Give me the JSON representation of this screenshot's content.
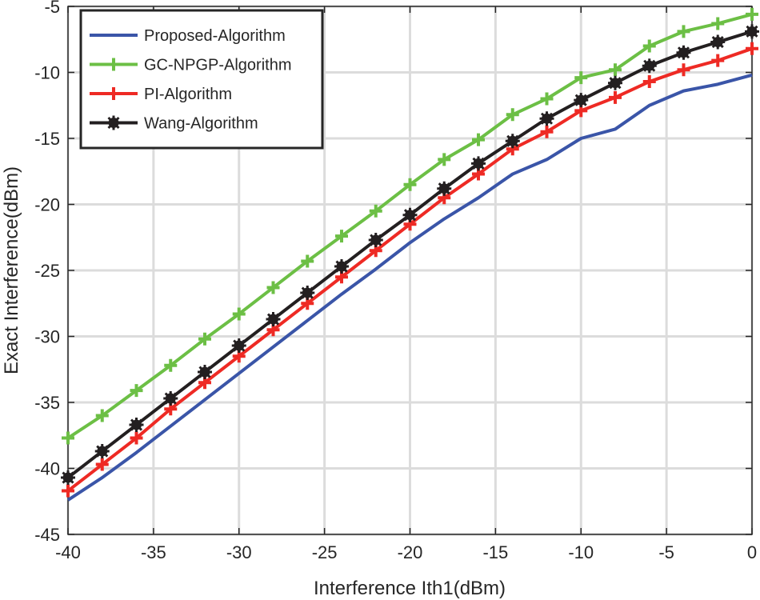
{
  "chart_data": {
    "type": "line",
    "title": "",
    "xlabel": "Interference Ith1(dBm)",
    "ylabel": "Exact Interference(dBm)",
    "xlim": [
      -40,
      0
    ],
    "ylim": [
      -45,
      -5
    ],
    "xticks": [
      -40,
      -35,
      -30,
      -25,
      -20,
      -15,
      -10,
      -5,
      0
    ],
    "yticks": [
      -45,
      -40,
      -35,
      -30,
      -25,
      -20,
      -15,
      -10,
      -5
    ],
    "grid": true,
    "legend_position": "top-left",
    "x": [
      -40,
      -38,
      -36,
      -34,
      -32,
      -30,
      -28,
      -26,
      -24,
      -22,
      -20,
      -18,
      -16,
      -14,
      -12,
      -10,
      -8,
      -6,
      -4,
      -2,
      0
    ],
    "series": [
      {
        "name": "Proposed-Algorithm",
        "color": "#3a55a8",
        "marker": "none",
        "values": [
          -42.4,
          -40.7,
          -38.8,
          -36.8,
          -34.8,
          -32.8,
          -30.8,
          -28.8,
          -26.8,
          -24.9,
          -22.9,
          -21.1,
          -19.5,
          -17.7,
          -16.6,
          -15.0,
          -14.3,
          -12.5,
          -11.4,
          -10.9,
          -10.2
        ]
      },
      {
        "name": "GC-NPGP-Algorithm",
        "color": "#6cbf45",
        "marker": "plus",
        "values": [
          -37.7,
          -36.0,
          -34.1,
          -32.2,
          -30.2,
          -28.3,
          -26.3,
          -24.3,
          -22.4,
          -20.5,
          -18.5,
          -16.6,
          -15.1,
          -13.2,
          -12.0,
          -10.4,
          -9.8,
          -8.0,
          -6.9,
          -6.3,
          -5.6
        ]
      },
      {
        "name": "PI-Algorithm",
        "color": "#ee2a24",
        "marker": "plus",
        "values": [
          -41.7,
          -39.7,
          -37.7,
          -35.5,
          -33.5,
          -31.5,
          -29.5,
          -27.5,
          -25.5,
          -23.5,
          -21.5,
          -19.5,
          -17.7,
          -15.8,
          -14.5,
          -12.9,
          -11.9,
          -10.7,
          -9.8,
          -9.1,
          -8.2
        ]
      },
      {
        "name": "Wang-Algorithm",
        "color": "#231f20",
        "marker": "asterisk",
        "values": [
          -40.7,
          -38.7,
          -36.7,
          -34.7,
          -32.7,
          -30.7,
          -28.7,
          -26.7,
          -24.7,
          -22.7,
          -20.8,
          -18.8,
          -16.9,
          -15.2,
          -13.5,
          -12.1,
          -10.8,
          -9.5,
          -8.5,
          -7.7,
          -6.9
        ]
      }
    ]
  }
}
